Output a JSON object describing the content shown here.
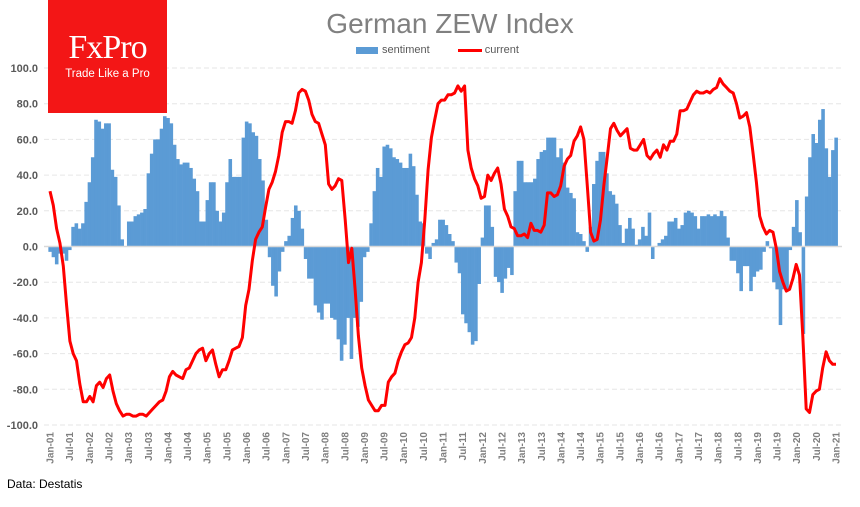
{
  "brand": {
    "name": "FxPro",
    "tagline": "Trade Like a Pro"
  },
  "source": "Data: Destatis",
  "colors": {
    "sentiment": "#5b9bd5",
    "current": "#ff0000",
    "logo": "#f31616"
  },
  "chart_data": {
    "type": "bar+line",
    "title": "German ZEW Index",
    "xlabel": "",
    "ylabel": "",
    "ylim": [
      -100,
      100
    ],
    "yticks": [
      "100.0",
      "80.0",
      "60.0",
      "40.0",
      "20.0",
      "0.0",
      "-20.0",
      "-40.0",
      "-60.0",
      "-80.0",
      "-100.0"
    ],
    "ytick_values": [
      100,
      80,
      60,
      40,
      20,
      0,
      -20,
      -40,
      -60,
      -80,
      -100
    ],
    "x_range": [
      "Jan-01",
      "Jan-21"
    ],
    "frequency": "monthly",
    "xticks": [
      "Jan-01",
      "Jul-01",
      "Jan-02",
      "Jul-02",
      "Jan-03",
      "Jul-03",
      "Jan-04",
      "Jul-04",
      "Jan-05",
      "Jul-05",
      "Jan-06",
      "Jul-06",
      "Jan-07",
      "Jul-07",
      "Jan-08",
      "Jul-08",
      "Jan-09",
      "Jul-09",
      "Jan-10",
      "Jul-10",
      "Jan-11",
      "Jul-11",
      "Jan-12",
      "Jul-12",
      "Jan-13",
      "Jul-13",
      "Jan-14",
      "Jul-14",
      "Jan-15",
      "Jul-15",
      "Jan-16",
      "Jul-16",
      "Jan-17",
      "Jul-17",
      "Jan-18",
      "Jul-18",
      "Jan-19",
      "Jul-19",
      "Jan-20",
      "Jul-20",
      "Jan-21"
    ],
    "grid": true,
    "legend": "top-center",
    "series": [
      {
        "name": "sentiment",
        "type": "bar",
        "values": [
          -3,
          -6,
          -10,
          -4,
          -4,
          -8,
          -2,
          11,
          13,
          10,
          13,
          25,
          36,
          50,
          71,
          70,
          66,
          69,
          69,
          43,
          39,
          23,
          4,
          0,
          14,
          14,
          17,
          18,
          19,
          21,
          41,
          52,
          60,
          60,
          66,
          73,
          72,
          69,
          57,
          49,
          46,
          47,
          47,
          44,
          38,
          31,
          14,
          14,
          26,
          36,
          36,
          20,
          14,
          19,
          36,
          49,
          39,
          39,
          39,
          61,
          70,
          69,
          64,
          62,
          49,
          37,
          15,
          -6,
          -22,
          -28,
          -14,
          -3,
          3,
          6,
          16,
          23,
          20,
          10,
          -7,
          -18,
          -18,
          -33,
          -37,
          -41,
          -32,
          -32,
          -40,
          -41,
          -52,
          -64,
          -55,
          -40,
          -63,
          -40,
          -45,
          -31,
          -6,
          -3,
          13,
          31,
          44,
          39,
          56,
          57,
          55,
          50,
          49,
          47,
          44,
          44,
          52,
          45,
          29,
          14,
          13,
          -4,
          -7,
          2,
          4,
          15,
          15,
          12,
          7,
          3,
          -9,
          -15,
          -38,
          -43,
          -48,
          -55,
          -53,
          -21,
          5,
          23,
          23,
          11,
          -17,
          -20,
          -26,
          -18,
          -12,
          -16,
          31,
          48,
          48,
          36,
          36,
          36,
          38,
          49,
          53,
          54,
          61,
          61,
          61,
          50,
          55,
          47,
          33,
          30,
          27,
          8,
          7,
          3,
          -3,
          11,
          35,
          48,
          53,
          53,
          41,
          31,
          29,
          24,
          12,
          2,
          10,
          16,
          10,
          1,
          4,
          11,
          6,
          19,
          -7,
          0,
          2,
          4,
          6,
          14,
          14,
          16,
          10,
          12,
          19,
          20,
          19,
          17,
          10,
          17,
          17,
          18,
          17,
          18,
          17,
          20,
          17,
          5,
          -8,
          -8,
          -15,
          -25,
          -11,
          -11,
          -25,
          -17,
          -14,
          -13,
          -3,
          3,
          -1,
          -20,
          -24,
          -44,
          -24,
          -24,
          -2,
          11,
          26,
          8,
          -49,
          28,
          50,
          63,
          58,
          71,
          77,
          55,
          39,
          54,
          61
        ]
      },
      {
        "name": "current",
        "type": "line",
        "values": [
          31,
          23,
          10,
          2,
          -11,
          -33,
          -53,
          -60,
          -64,
          -77,
          -87,
          -87,
          -84,
          -87,
          -78,
          -76,
          -79,
          -74,
          -72,
          -81,
          -88,
          -92,
          -95,
          -94,
          -94,
          -95,
          -95,
          -94,
          -94,
          -95,
          -93,
          -91,
          -89,
          -87,
          -86,
          -81,
          -73,
          -70,
          -72,
          -73,
          -74,
          -69,
          -68,
          -64,
          -60,
          -58,
          -57,
          -64,
          -60,
          -58,
          -66,
          -73,
          -69,
          -69,
          -64,
          -58,
          -57,
          -56,
          -51,
          -33,
          -24,
          -8,
          4,
          8,
          11,
          22,
          32,
          36,
          42,
          51,
          64,
          70,
          70,
          69,
          76,
          86,
          88,
          87,
          82,
          74,
          70,
          69,
          63,
          57,
          35,
          32,
          34,
          38,
          37,
          15,
          -9,
          -1,
          -24,
          -50,
          -68,
          -78,
          -86,
          -89,
          -92,
          -92,
          -89,
          -89,
          -76,
          -73,
          -71,
          -64,
          -59,
          -55,
          -54,
          -51,
          -40,
          -20,
          -9,
          15,
          43,
          61,
          71,
          80,
          82,
          82,
          85,
          85,
          86,
          90,
          87,
          90,
          54,
          44,
          38,
          34,
          27,
          28,
          40,
          37,
          41,
          44,
          35,
          21,
          17,
          11,
          10,
          6,
          6,
          7,
          5,
          13,
          9,
          9,
          8,
          12,
          30,
          30,
          28,
          29,
          34,
          45,
          49,
          51,
          59,
          62,
          67,
          60,
          34,
          8,
          3,
          4,
          15,
          34,
          50,
          66,
          69,
          65,
          62,
          64,
          66,
          55,
          54,
          54,
          57,
          60,
          51,
          49,
          52,
          54,
          50,
          57,
          54,
          59,
          59,
          63,
          76,
          76,
          77,
          81,
          85,
          87,
          86,
          86,
          87,
          86,
          88,
          89,
          94,
          91,
          89,
          87,
          86,
          80,
          72,
          73,
          75,
          67,
          52,
          36,
          17,
          11,
          7,
          9,
          8,
          -1,
          -14,
          -20,
          -25,
          -24,
          -18,
          -10,
          -16,
          -50,
          -91,
          -93,
          -83,
          -81,
          -80,
          -68,
          -59,
          -64,
          -66,
          -66
        ]
      }
    ]
  }
}
